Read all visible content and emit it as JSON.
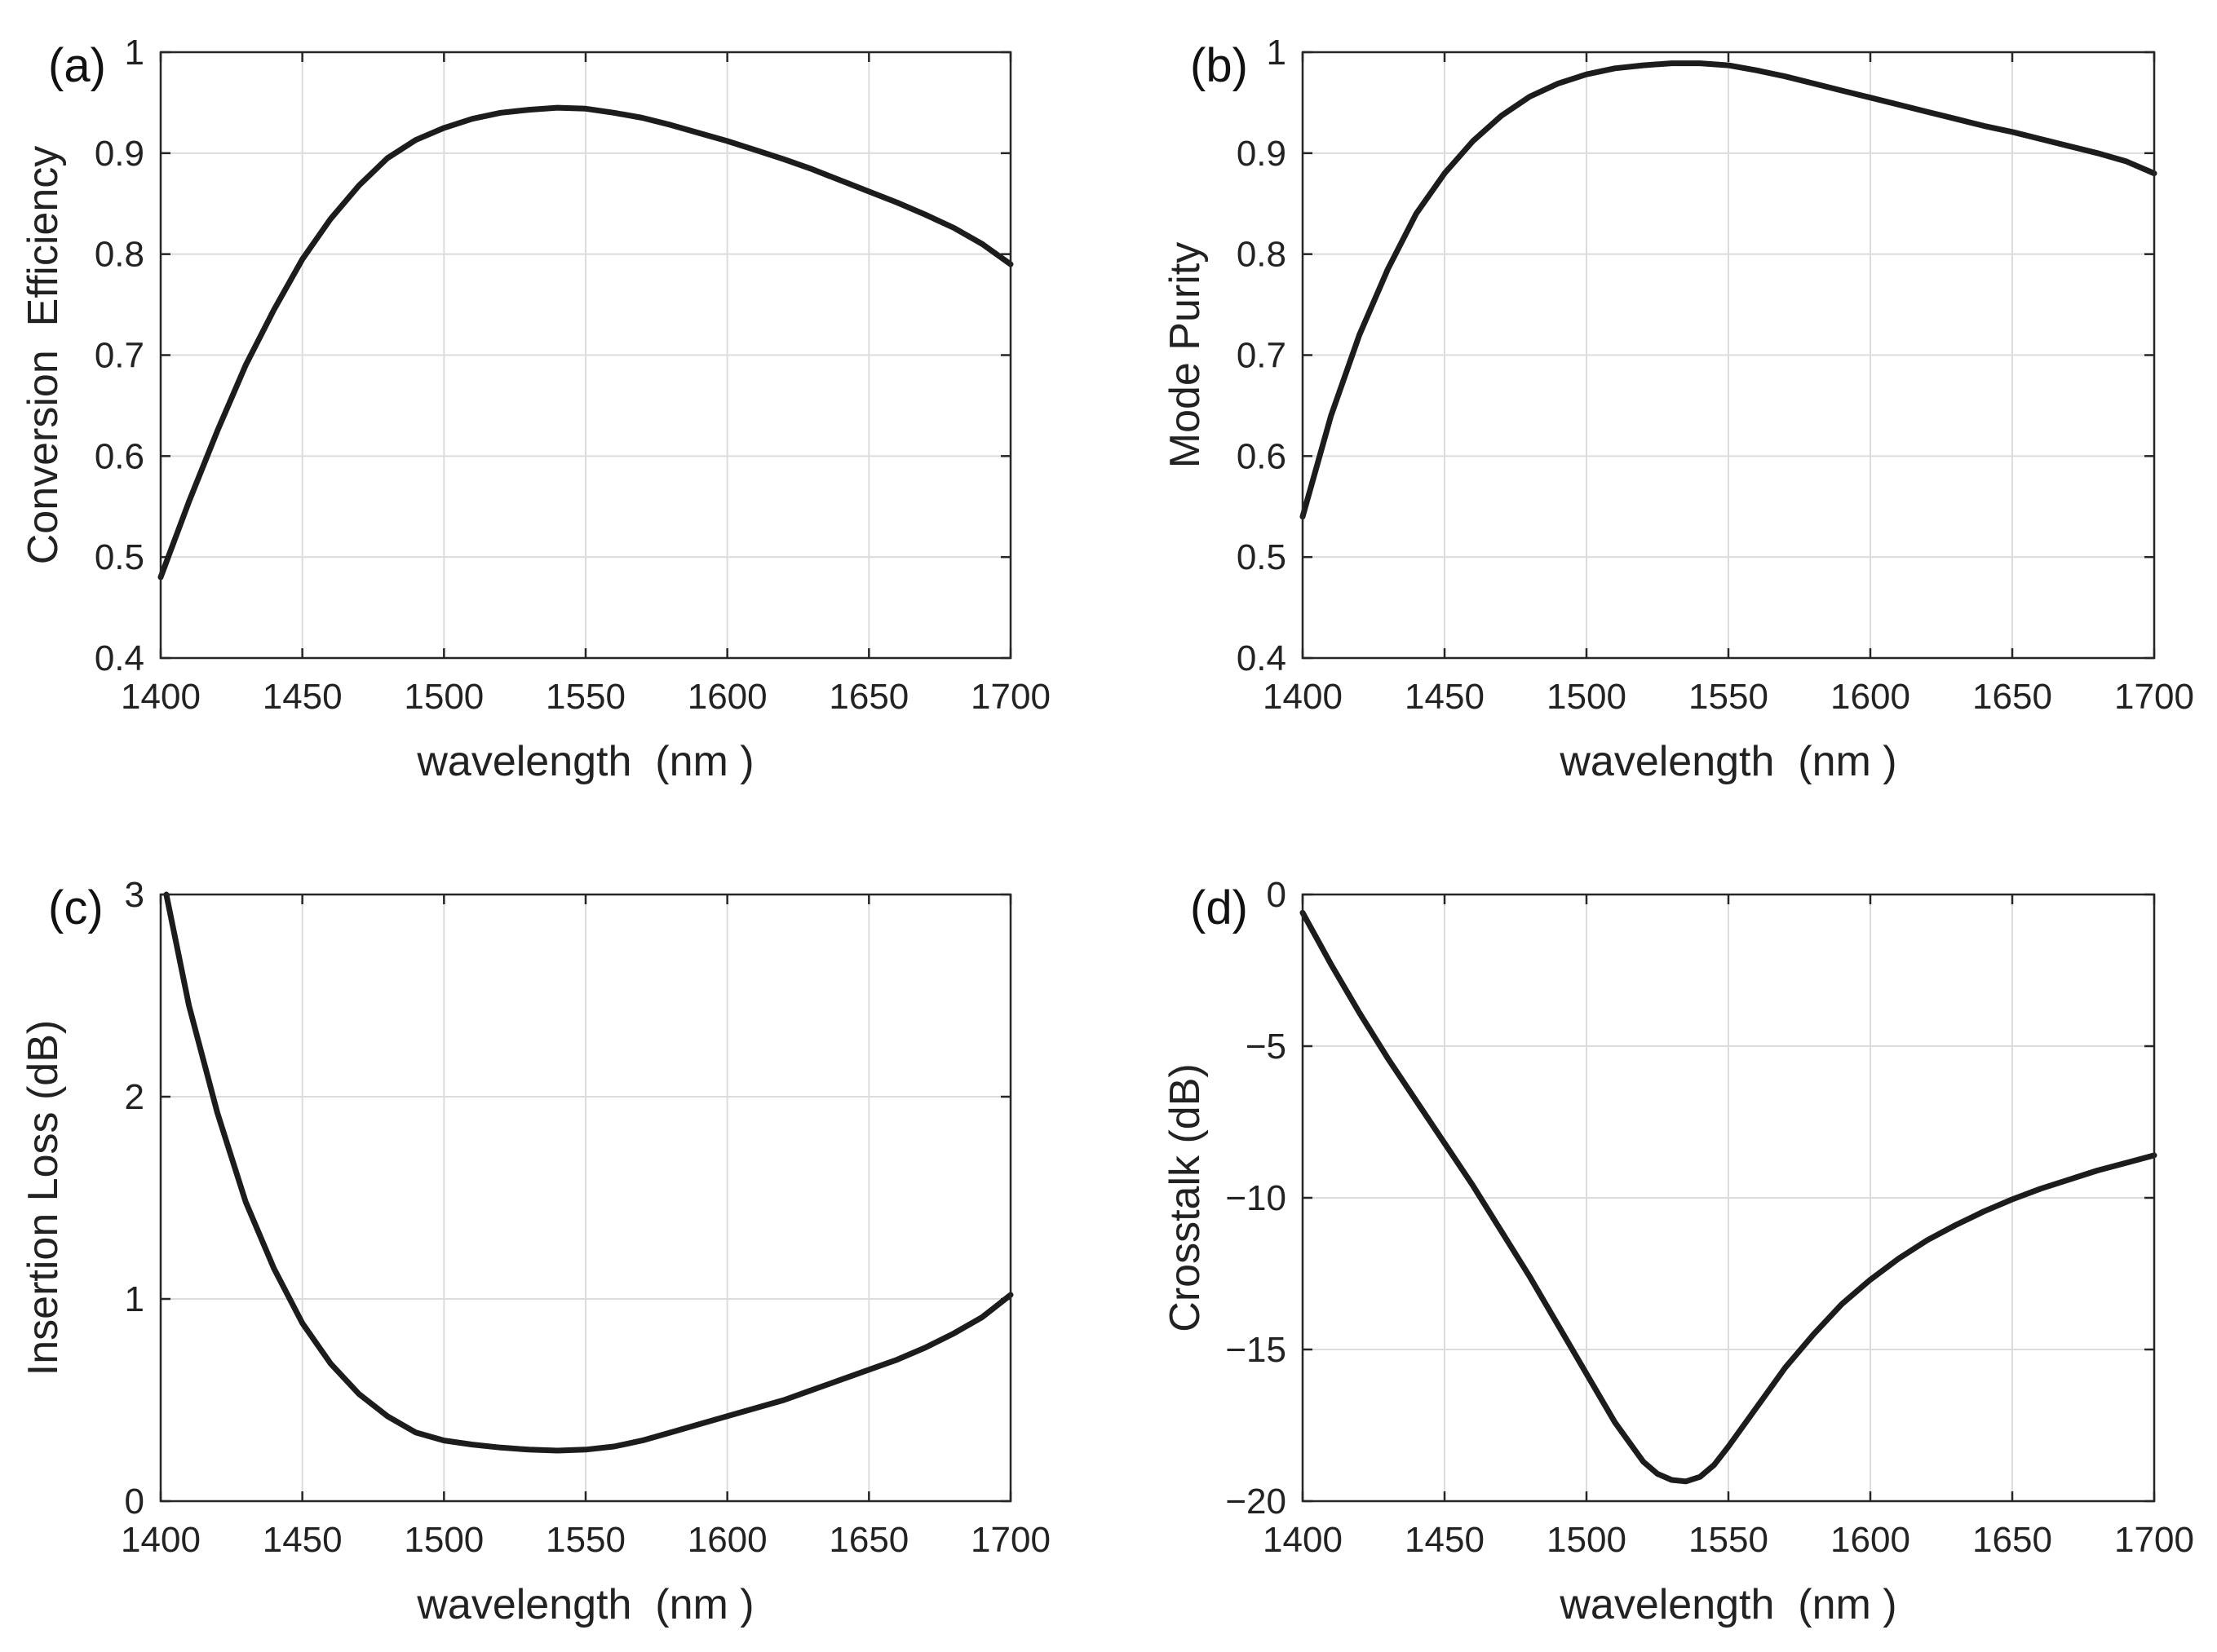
{
  "chart_data": [
    {
      "id": "a",
      "type": "line",
      "panel_label": "(a)",
      "title": "",
      "xlabel": "wavelength  (nm )",
      "ylabel": "Conversion  Efficiency",
      "xlim": [
        1400,
        1700
      ],
      "ylim": [
        0.4,
        1
      ],
      "xticks": [
        1400,
        1450,
        1500,
        1550,
        1600,
        1650,
        1700
      ],
      "xtick_labels": [
        "1400",
        "1450",
        "1500",
        "1550",
        "1600",
        "1650",
        "1700"
      ],
      "yticks": [
        0.4,
        0.5,
        0.6,
        0.7,
        0.8,
        0.9,
        1
      ],
      "ytick_labels": [
        "0.4",
        "0.5",
        "0.6",
        "0.7",
        "0.8",
        "0.9",
        "1"
      ],
      "grid": true,
      "series": [
        {
          "name": "Conversion Efficiency",
          "x": [
            1400,
            1410,
            1420,
            1430,
            1440,
            1450,
            1460,
            1470,
            1480,
            1490,
            1500,
            1510,
            1520,
            1530,
            1540,
            1550,
            1560,
            1570,
            1580,
            1590,
            1600,
            1610,
            1620,
            1630,
            1640,
            1650,
            1660,
            1670,
            1680,
            1690,
            1700
          ],
          "y": [
            0.48,
            0.555,
            0.625,
            0.69,
            0.745,
            0.795,
            0.835,
            0.868,
            0.895,
            0.913,
            0.925,
            0.934,
            0.94,
            0.943,
            0.945,
            0.944,
            0.94,
            0.935,
            0.928,
            0.92,
            0.912,
            0.903,
            0.894,
            0.884,
            0.873,
            0.862,
            0.851,
            0.839,
            0.826,
            0.81,
            0.79
          ]
        }
      ]
    },
    {
      "id": "b",
      "type": "line",
      "panel_label": "(b)",
      "title": "",
      "xlabel": "wavelength  (nm )",
      "ylabel": "Mode Purity",
      "xlim": [
        1400,
        1700
      ],
      "ylim": [
        0.4,
        1
      ],
      "xticks": [
        1400,
        1450,
        1500,
        1550,
        1600,
        1650,
        1700
      ],
      "xtick_labels": [
        "1400",
        "1450",
        "1500",
        "1550",
        "1600",
        "1650",
        "1700"
      ],
      "yticks": [
        0.4,
        0.5,
        0.6,
        0.7,
        0.8,
        0.9,
        1
      ],
      "ytick_labels": [
        "0.4",
        "0.5",
        "0.6",
        "0.7",
        "0.8",
        "0.9",
        "1"
      ],
      "grid": true,
      "series": [
        {
          "name": "Mode Purity",
          "x": [
            1400,
            1410,
            1420,
            1430,
            1440,
            1450,
            1460,
            1470,
            1480,
            1490,
            1500,
            1510,
            1520,
            1530,
            1540,
            1550,
            1560,
            1570,
            1580,
            1590,
            1600,
            1610,
            1620,
            1630,
            1640,
            1650,
            1660,
            1670,
            1680,
            1690,
            1700
          ],
          "y": [
            0.54,
            0.64,
            0.72,
            0.785,
            0.84,
            0.88,
            0.912,
            0.937,
            0.956,
            0.969,
            0.978,
            0.984,
            0.987,
            0.989,
            0.989,
            0.987,
            0.982,
            0.976,
            0.969,
            0.962,
            0.955,
            0.948,
            0.941,
            0.934,
            0.927,
            0.921,
            0.914,
            0.907,
            0.9,
            0.892,
            0.88
          ]
        }
      ]
    },
    {
      "id": "c",
      "type": "line",
      "panel_label": "(c)",
      "title": "",
      "xlabel": "wavelength  (nm )",
      "ylabel": "Insertion Loss (dB)",
      "xlim": [
        1400,
        1700
      ],
      "ylim": [
        0,
        3
      ],
      "xticks": [
        1400,
        1450,
        1500,
        1550,
        1600,
        1650,
        1700
      ],
      "xtick_labels": [
        "1400",
        "1450",
        "1500",
        "1550",
        "1600",
        "1650",
        "1700"
      ],
      "yticks": [
        0,
        1,
        2,
        3
      ],
      "ytick_labels": [
        "0",
        "1",
        "2",
        "3"
      ],
      "grid": true,
      "series": [
        {
          "name": "Insertion Loss",
          "x": [
            1402,
            1410,
            1420,
            1430,
            1440,
            1450,
            1460,
            1470,
            1480,
            1490,
            1500,
            1510,
            1520,
            1530,
            1540,
            1550,
            1560,
            1570,
            1580,
            1590,
            1600,
            1610,
            1620,
            1630,
            1640,
            1650,
            1660,
            1670,
            1680,
            1690,
            1700
          ],
          "y": [
            3.0,
            2.45,
            1.92,
            1.48,
            1.15,
            0.88,
            0.68,
            0.53,
            0.42,
            0.34,
            0.3,
            0.28,
            0.265,
            0.255,
            0.25,
            0.255,
            0.27,
            0.3,
            0.34,
            0.38,
            0.42,
            0.46,
            0.5,
            0.55,
            0.6,
            0.65,
            0.7,
            0.76,
            0.83,
            0.91,
            1.02
          ]
        }
      ]
    },
    {
      "id": "d",
      "type": "line",
      "panel_label": "(d)",
      "title": "",
      "xlabel": "wavelength  (nm )",
      "ylabel": "Crosstalk (dB)",
      "xlim": [
        1400,
        1700
      ],
      "ylim": [
        -20,
        0
      ],
      "xticks": [
        1400,
        1450,
        1500,
        1550,
        1600,
        1650,
        1700
      ],
      "xtick_labels": [
        "1400",
        "1450",
        "1500",
        "1550",
        "1600",
        "1650",
        "1700"
      ],
      "yticks": [
        -20,
        -15,
        -10,
        -5,
        0
      ],
      "ytick_labels": [
        "−20",
        "−15",
        "−10",
        "−5",
        "0"
      ],
      "grid": true,
      "series": [
        {
          "name": "Crosstalk",
          "x": [
            1400,
            1410,
            1420,
            1430,
            1440,
            1450,
            1460,
            1470,
            1480,
            1490,
            1500,
            1510,
            1520,
            1525,
            1530,
            1535,
            1540,
            1545,
            1550,
            1560,
            1570,
            1580,
            1590,
            1600,
            1610,
            1620,
            1630,
            1640,
            1650,
            1660,
            1670,
            1680,
            1690,
            1700
          ],
          "y": [
            -0.6,
            -2.3,
            -3.9,
            -5.4,
            -6.8,
            -8.2,
            -9.6,
            -11.1,
            -12.6,
            -14.2,
            -15.8,
            -17.4,
            -18.7,
            -19.1,
            -19.3,
            -19.35,
            -19.2,
            -18.8,
            -18.2,
            -16.9,
            -15.6,
            -14.5,
            -13.5,
            -12.7,
            -12.0,
            -11.4,
            -10.9,
            -10.45,
            -10.05,
            -9.7,
            -9.4,
            -9.1,
            -8.85,
            -8.6
          ]
        }
      ]
    }
  ]
}
